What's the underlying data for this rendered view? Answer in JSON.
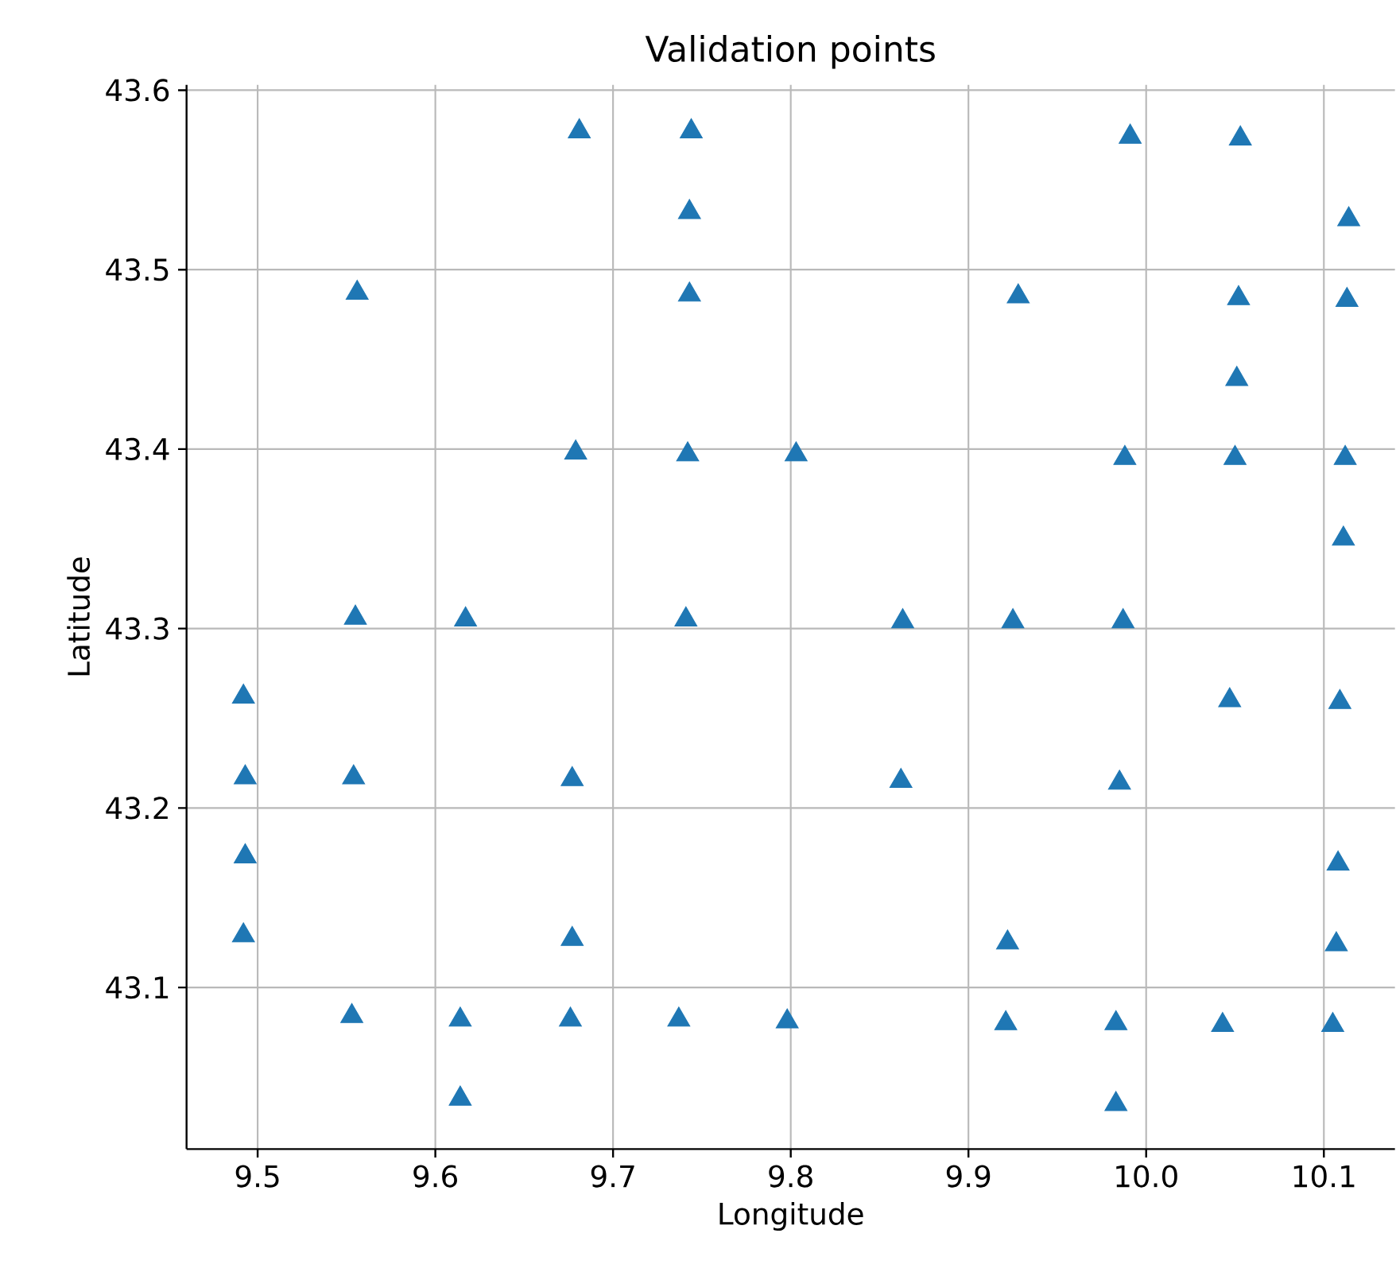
{
  "chart_data": {
    "type": "scatter",
    "title": "Validation points",
    "xlabel": "Longitude",
    "ylabel": "Latitude",
    "x": [
      9.681,
      9.744,
      9.991,
      10.053,
      9.743,
      10.114,
      9.556,
      9.743,
      9.928,
      10.052,
      10.113,
      10.051,
      9.679,
      9.742,
      9.803,
      9.988,
      10.05,
      10.112,
      10.111,
      9.555,
      9.617,
      9.741,
      9.863,
      9.925,
      9.987,
      9.492,
      10.047,
      10.109,
      9.493,
      9.554,
      9.677,
      9.862,
      9.985,
      9.493,
      10.108,
      9.492,
      9.677,
      9.922,
      10.107,
      9.553,
      9.614,
      9.676,
      9.737,
      9.798,
      9.921,
      9.983,
      10.043,
      10.105,
      9.614,
      9.983
    ],
    "values": [
      43.577,
      43.577,
      43.574,
      43.573,
      43.532,
      43.528,
      43.487,
      43.486,
      43.485,
      43.484,
      43.483,
      43.439,
      43.398,
      43.397,
      43.397,
      43.395,
      43.395,
      43.395,
      43.35,
      43.306,
      43.305,
      43.305,
      43.304,
      43.304,
      43.304,
      43.262,
      43.26,
      43.259,
      43.217,
      43.217,
      43.216,
      43.215,
      43.214,
      43.173,
      43.169,
      43.129,
      43.127,
      43.125,
      43.124,
      43.084,
      43.082,
      43.082,
      43.082,
      43.081,
      43.08,
      43.08,
      43.079,
      43.079,
      43.038,
      43.035
    ],
    "color": "#1f77b4",
    "marker": "triangle",
    "grid": true,
    "xlim": [
      9.46,
      10.14
    ],
    "ylim": [
      43.01,
      43.603
    ],
    "xticks": [
      {
        "value": 9.5,
        "label": "9.5"
      },
      {
        "value": 9.6,
        "label": "9.6"
      },
      {
        "value": 9.7,
        "label": "9.7"
      },
      {
        "value": 9.8,
        "label": "9.8"
      },
      {
        "value": 9.9,
        "label": "9.9"
      },
      {
        "value": 10.0,
        "label": "10.0"
      },
      {
        "value": 10.1,
        "label": "10.1"
      }
    ],
    "yticks": [
      {
        "value": 43.1,
        "label": "43.1"
      },
      {
        "value": 43.2,
        "label": "43.2"
      },
      {
        "value": 43.3,
        "label": "43.3"
      },
      {
        "value": 43.4,
        "label": "43.4"
      },
      {
        "value": 43.5,
        "label": "43.5"
      },
      {
        "value": 43.6,
        "label": "43.6"
      }
    ]
  }
}
